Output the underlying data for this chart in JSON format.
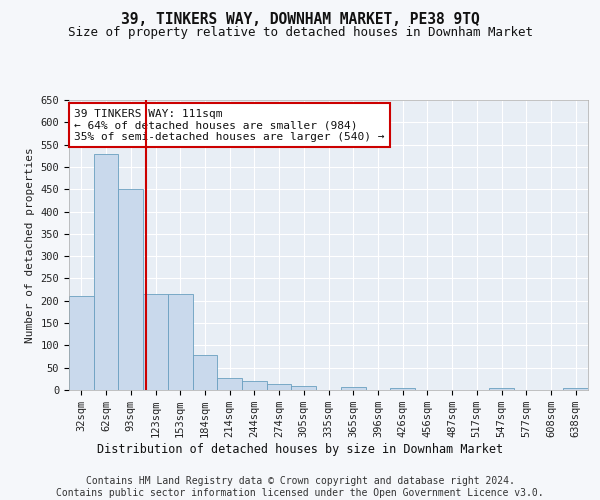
{
  "title1": "39, TINKERS WAY, DOWNHAM MARKET, PE38 9TQ",
  "title2": "Size of property relative to detached houses in Downham Market",
  "xlabel": "Distribution of detached houses by size in Downham Market",
  "ylabel": "Number of detached properties",
  "footer": "Contains HM Land Registry data © Crown copyright and database right 2024.\nContains public sector information licensed under the Open Government Licence v3.0.",
  "bin_labels": [
    "32sqm",
    "62sqm",
    "93sqm",
    "123sqm",
    "153sqm",
    "184sqm",
    "214sqm",
    "244sqm",
    "274sqm",
    "305sqm",
    "335sqm",
    "365sqm",
    "396sqm",
    "426sqm",
    "456sqm",
    "487sqm",
    "517sqm",
    "547sqm",
    "577sqm",
    "608sqm",
    "638sqm"
  ],
  "bar_heights": [
    210,
    530,
    450,
    215,
    215,
    78,
    27,
    20,
    13,
    10,
    0,
    7,
    0,
    5,
    0,
    0,
    0,
    5,
    0,
    0,
    5
  ],
  "bar_color": "#c9d9ec",
  "bar_edge_color": "#6a9fc0",
  "property_line_x": 2.6,
  "property_line_color": "#cc0000",
  "annotation_text": "39 TINKERS WAY: 111sqm\n← 64% of detached houses are smaller (984)\n35% of semi-detached houses are larger (540) →",
  "annotation_box_color": "#ffffff",
  "annotation_box_edge": "#cc0000",
  "ylim": [
    0,
    650
  ],
  "yticks": [
    0,
    50,
    100,
    150,
    200,
    250,
    300,
    350,
    400,
    450,
    500,
    550,
    600,
    650
  ],
  "background_color": "#e8eef5",
  "plot_bg_color": "#dce6f0",
  "grid_color": "#ffffff",
  "fig_bg_color": "#f5f7fa",
  "title1_fontsize": 10.5,
  "title2_fontsize": 9,
  "xlabel_fontsize": 8.5,
  "ylabel_fontsize": 8,
  "tick_fontsize": 7.5,
  "annotation_fontsize": 8,
  "footer_fontsize": 7
}
